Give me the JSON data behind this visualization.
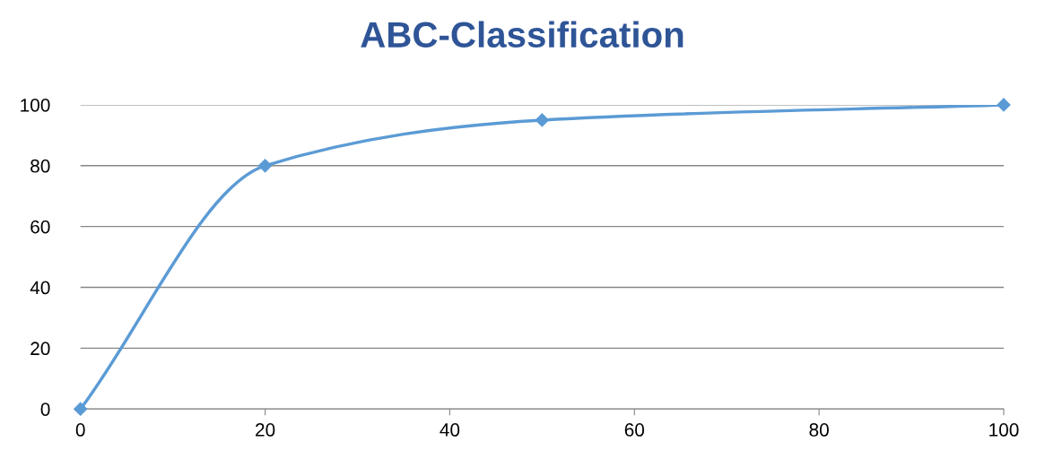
{
  "chart_data": {
    "type": "line",
    "title": "ABC-Classification",
    "x": [
      0,
      20,
      50,
      100
    ],
    "series": [
      {
        "color": "#5b9bd5",
        "values": [
          0,
          80,
          95,
          100
        ]
      }
    ],
    "xlim": [
      0,
      100
    ],
    "xticks": [
      0,
      20,
      40,
      60,
      80,
      100
    ],
    "ylim": [
      0,
      100
    ],
    "yticks": [
      0,
      20,
      40,
      60,
      80,
      100
    ],
    "grid": "y",
    "marker": "diamond",
    "line_style": "solid",
    "legend": false
  }
}
